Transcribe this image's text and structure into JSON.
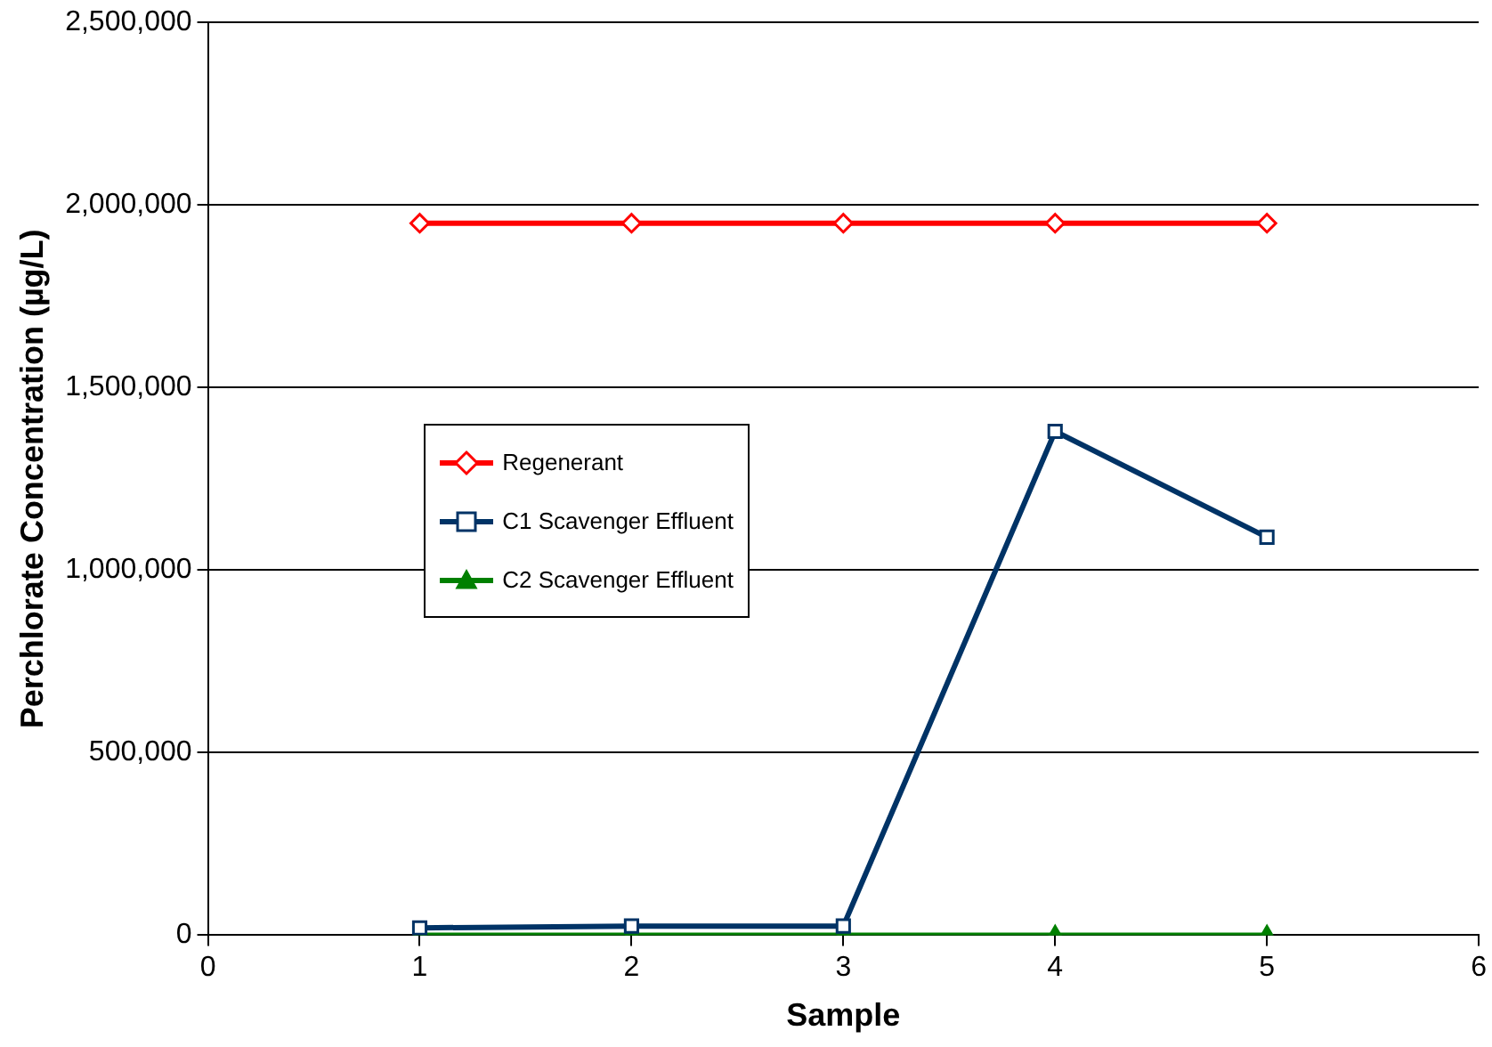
{
  "chart_data": {
    "type": "line",
    "xlabel": "Sample",
    "ylabel": "Perchlorate Concentration (µg/L)",
    "x": [
      1,
      2,
      3,
      4,
      5
    ],
    "series": [
      {
        "name": "Regenerant",
        "color": "#ff0000",
        "marker": "diamond",
        "values": [
          1950000,
          1950000,
          1950000,
          1950000,
          1950000
        ]
      },
      {
        "name": "C1 Scavenger Effluent",
        "color": "#003366",
        "marker": "square",
        "values": [
          20000,
          25000,
          25000,
          1380000,
          1090000
        ]
      },
      {
        "name": "C2 Scavenger Effluent",
        "color": "#008000",
        "marker": "triangle",
        "values": [
          0,
          0,
          0,
          0,
          0
        ]
      }
    ],
    "xlim": [
      0,
      6
    ],
    "xticks": [
      0,
      1,
      2,
      3,
      4,
      5,
      6
    ],
    "ylim": [
      0,
      2500000
    ],
    "yticks": [
      0,
      {
        "value": 500000,
        "label": "500,000"
      },
      {
        "value": 1000000,
        "label": "1,000,000"
      },
      {
        "value": 1500000,
        "label": "1,500,000"
      },
      {
        "value": 2000000,
        "label": "2,000,000"
      },
      {
        "value": 2500000,
        "label": "2,500,000"
      }
    ],
    "grid": "y",
    "legend": "left",
    "line_style": "solid"
  }
}
